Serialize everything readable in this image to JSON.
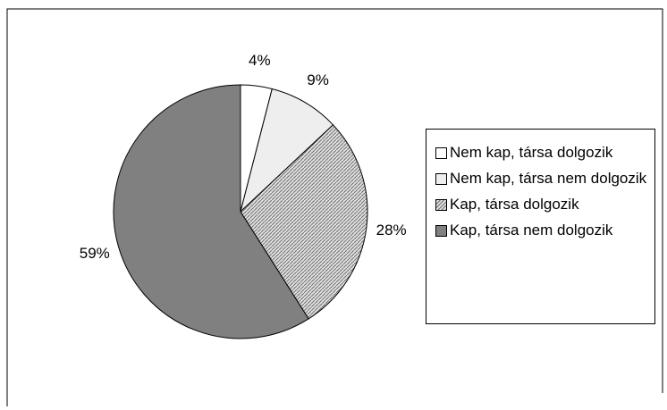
{
  "chart_data": {
    "type": "pie",
    "categories": [
      "Nem kap, társa dolgozik",
      "Nem kap, társa nem dolgozik",
      "Kap, társa dolgozik",
      "Kap, társa nem dolgozik"
    ],
    "values": [
      4,
      9,
      28,
      59
    ],
    "value_labels": [
      "4%",
      "9%",
      "28%",
      "59%"
    ],
    "colors": [
      "#ffffff",
      "#eeeeee",
      "#c8c8c8",
      "#808080"
    ],
    "hatched": [
      false,
      false,
      true,
      false
    ],
    "legend": "right"
  }
}
